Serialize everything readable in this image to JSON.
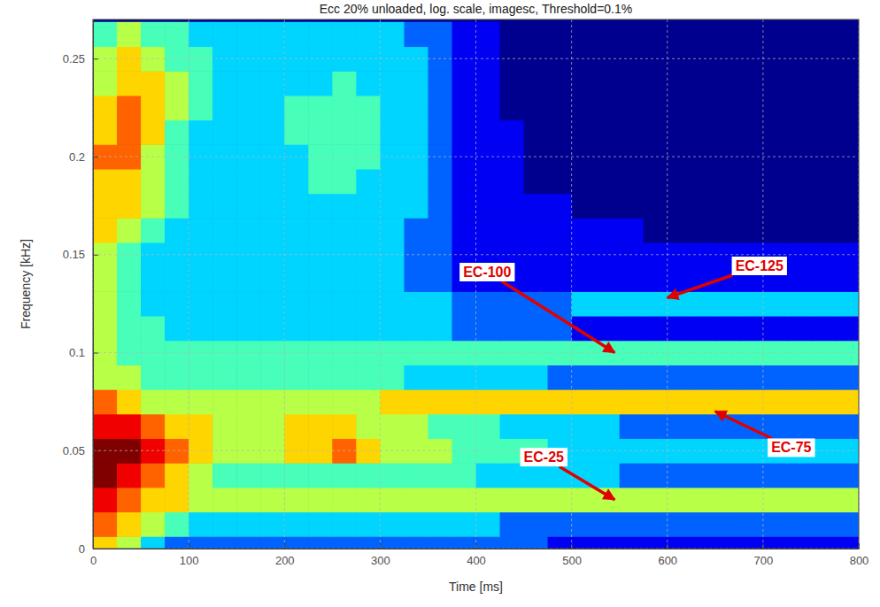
{
  "chart_data": {
    "type": "heatmap",
    "title": "Ecc 20% unloaded, log. scale, imagesc, Threshold=0.1%",
    "x_label": "Time [ms]",
    "y_label": "Frequency [kHz]",
    "xlim": [
      0,
      800
    ],
    "ylim": [
      0,
      0.27
    ],
    "xticks": [
      0,
      100,
      200,
      300,
      400,
      500,
      600,
      700,
      800
    ],
    "yticks": [
      0,
      0.05,
      0.1,
      0.15,
      0.2,
      0.25
    ],
    "grid": true,
    "x": [
      12.5,
      37.5,
      62.5,
      87.5,
      112.5,
      137.5,
      162.5,
      187.5,
      212.5,
      237.5,
      262.5,
      287.5,
      312.5,
      337.5,
      362.5,
      387.5,
      412.5,
      437.5,
      462.5,
      487.5,
      512.5,
      537.5,
      562.5,
      587.5,
      612.5,
      637.5,
      662.5,
      687.5,
      712.5,
      737.5,
      762.5,
      787.5
    ],
    "y": [
      0,
      0.0125,
      0.025,
      0.0375,
      0.05,
      0.0625,
      0.075,
      0.0875,
      0.1,
      0.1125,
      0.125,
      0.1375,
      0.15,
      0.1625,
      0.175,
      0.1875,
      0.2,
      0.2125,
      0.225,
      0.2375,
      0.25,
      0.2625
    ],
    "zlim": [
      0,
      9
    ],
    "z": [
      [
        6,
        5,
        3,
        2,
        2,
        2,
        2,
        2,
        2,
        2,
        2,
        2,
        2,
        2,
        2,
        2,
        2,
        2,
        2,
        1,
        1,
        1,
        1,
        1,
        1,
        1,
        1,
        1,
        1,
        1,
        1,
        1
      ],
      [
        7,
        6,
        5,
        4,
        3,
        3,
        3,
        3,
        3,
        3,
        3,
        3,
        3,
        3,
        3,
        3,
        3,
        2,
        2,
        2,
        2,
        2,
        2,
        2,
        2,
        2,
        2,
        2,
        2,
        2,
        2,
        2
      ],
      [
        8,
        7,
        6,
        6,
        5,
        5,
        5,
        5,
        5,
        5,
        5,
        5,
        5,
        5,
        5,
        5,
        5,
        5,
        5,
        5,
        5,
        5,
        5,
        5,
        5,
        5,
        5,
        5,
        5,
        5,
        5,
        5
      ],
      [
        9,
        8,
        7,
        6,
        5,
        4,
        4,
        4,
        4,
        4,
        4,
        4,
        4,
        4,
        4,
        4,
        3,
        3,
        3,
        3,
        3,
        3,
        2,
        2,
        2,
        2,
        2,
        2,
        2,
        2,
        2,
        2
      ],
      [
        9,
        9,
        8,
        7,
        6,
        5,
        5,
        5,
        6,
        6,
        7,
        6,
        5,
        5,
        5,
        4,
        4,
        4,
        4,
        3,
        3,
        3,
        3,
        3,
        3,
        3,
        3,
        3,
        3,
        3,
        3,
        3
      ],
      [
        8,
        8,
        7,
        6,
        6,
        5,
        5,
        5,
        6,
        6,
        6,
        5,
        5,
        5,
        4,
        4,
        4,
        3,
        3,
        3,
        3,
        3,
        2,
        2,
        2,
        2,
        2,
        2,
        2,
        2,
        2,
        2
      ],
      [
        7,
        6,
        5,
        5,
        5,
        5,
        5,
        5,
        5,
        5,
        5,
        5,
        6,
        6,
        6,
        6,
        6,
        6,
        6,
        6,
        6,
        6,
        6,
        6,
        6,
        6,
        6,
        6,
        6,
        6,
        6,
        6
      ],
      [
        5,
        5,
        4,
        4,
        4,
        4,
        4,
        4,
        4,
        4,
        4,
        4,
        4,
        3,
        3,
        3,
        3,
        3,
        3,
        2,
        2,
        2,
        2,
        2,
        2,
        2,
        2,
        2,
        2,
        2,
        2,
        2
      ],
      [
        5,
        4,
        4,
        4,
        4,
        4,
        4,
        4,
        4,
        4,
        4,
        4,
        4,
        4,
        4,
        4,
        4,
        4,
        4,
        4,
        4,
        4,
        4,
        4,
        4,
        4,
        4,
        4,
        4,
        4,
        4,
        4
      ],
      [
        5,
        4,
        4,
        3,
        3,
        3,
        3,
        3,
        3,
        3,
        3,
        3,
        3,
        3,
        3,
        2,
        2,
        2,
        2,
        2,
        1,
        1,
        1,
        1,
        1,
        1,
        1,
        1,
        1,
        1,
        1,
        1
      ],
      [
        5,
        4,
        3,
        3,
        3,
        3,
        3,
        3,
        3,
        3,
        3,
        3,
        3,
        3,
        3,
        2,
        2,
        2,
        2,
        2,
        3,
        3,
        3,
        3,
        3,
        3,
        3,
        3,
        3,
        3,
        3,
        3
      ],
      [
        5,
        4,
        3,
        3,
        3,
        3,
        3,
        3,
        3,
        3,
        3,
        3,
        3,
        2,
        2,
        1,
        1,
        1,
        1,
        1,
        1,
        1,
        1,
        1,
        1,
        1,
        1,
        1,
        1,
        1,
        1,
        1
      ],
      [
        5,
        4,
        3,
        3,
        3,
        3,
        3,
        3,
        3,
        3,
        3,
        3,
        3,
        2,
        2,
        1,
        1,
        1,
        1,
        1,
        1,
        1,
        1,
        1,
        1,
        1,
        1,
        1,
        1,
        1,
        1,
        1
      ],
      [
        6,
        5,
        4,
        3,
        3,
        3,
        3,
        3,
        3,
        3,
        3,
        3,
        3,
        2,
        2,
        1,
        1,
        1,
        1,
        1,
        1,
        1,
        1,
        0,
        0,
        0,
        0,
        0,
        0,
        0,
        0,
        0
      ],
      [
        6,
        6,
        5,
        4,
        3,
        3,
        3,
        3,
        3,
        3,
        3,
        3,
        3,
        3,
        2,
        1,
        1,
        1,
        1,
        1,
        0,
        0,
        0,
        0,
        0,
        0,
        0,
        0,
        0,
        0,
        0,
        0
      ],
      [
        6,
        6,
        5,
        4,
        3,
        3,
        3,
        3,
        3,
        4,
        4,
        3,
        3,
        3,
        2,
        1,
        1,
        1,
        0,
        0,
        0,
        0,
        0,
        0,
        0,
        0,
        0,
        0,
        0,
        0,
        0,
        0
      ],
      [
        7,
        7,
        5,
        4,
        3,
        3,
        3,
        3,
        3,
        4,
        4,
        4,
        3,
        3,
        2,
        1,
        1,
        1,
        0,
        0,
        0,
        0,
        0,
        0,
        0,
        0,
        0,
        0,
        0,
        0,
        0,
        0
      ],
      [
        6,
        7,
        6,
        4,
        3,
        3,
        3,
        3,
        4,
        4,
        4,
        4,
        3,
        3,
        2,
        1,
        1,
        1,
        0,
        0,
        0,
        0,
        0,
        0,
        0,
        0,
        0,
        0,
        0,
        0,
        0,
        0
      ],
      [
        6,
        7,
        6,
        5,
        4,
        3,
        3,
        3,
        4,
        4,
        4,
        4,
        3,
        3,
        2,
        1,
        1,
        0,
        0,
        0,
        0,
        0,
        0,
        0,
        0,
        0,
        0,
        0,
        0,
        0,
        0,
        0
      ],
      [
        5,
        6,
        6,
        5,
        4,
        3,
        3,
        3,
        3,
        3,
        4,
        3,
        3,
        3,
        2,
        1,
        1,
        0,
        0,
        0,
        0,
        0,
        0,
        0,
        0,
        0,
        0,
        0,
        0,
        0,
        0,
        0
      ],
      [
        5,
        6,
        5,
        4,
        4,
        3,
        3,
        3,
        3,
        3,
        3,
        3,
        3,
        3,
        2,
        1,
        1,
        0,
        0,
        0,
        0,
        0,
        0,
        0,
        0,
        0,
        0,
        0,
        0,
        0,
        0,
        0
      ],
      [
        4,
        5,
        4,
        4,
        3,
        3,
        3,
        3,
        3,
        3,
        3,
        3,
        3,
        2,
        2,
        1,
        1,
        0,
        0,
        0,
        0,
        0,
        0,
        0,
        0,
        0,
        0,
        0,
        0,
        0,
        0,
        0
      ]
    ],
    "annotations": [
      {
        "text": "EC-100",
        "x": 545,
        "y": 0.1
      },
      {
        "text": "EC-125",
        "x": 600,
        "y": 0.128
      },
      {
        "text": "EC-75",
        "x": 650,
        "y": 0.07
      },
      {
        "text": "EC-25",
        "x": 545,
        "y": 0.025
      }
    ]
  }
}
